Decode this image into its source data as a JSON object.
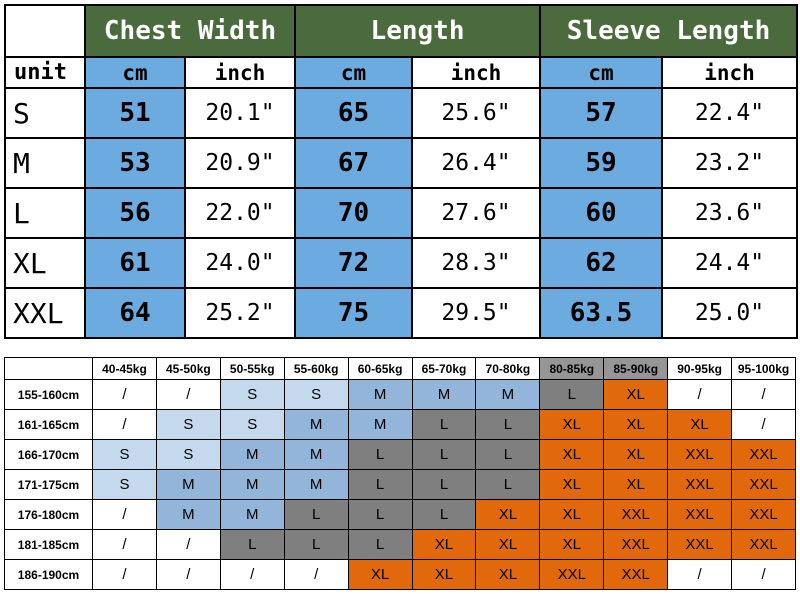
{
  "chart_data": [
    {
      "type": "table",
      "column_groups": [
        "Chest Width",
        "Length",
        "Sleeve Length"
      ],
      "unit_label": "unit",
      "unit_headers": [
        "cm",
        "inch",
        "cm",
        "inch",
        "cm",
        "inch"
      ],
      "rows": [
        {
          "size": "S",
          "values": [
            "51",
            "20.1\"",
            "65",
            "25.6\"",
            "57",
            "22.4\""
          ]
        },
        {
          "size": "M",
          "values": [
            "53",
            "20.9\"",
            "67",
            "26.4\"",
            "59",
            "23.2\""
          ]
        },
        {
          "size": "L",
          "values": [
            "56",
            "22.0\"",
            "70",
            "27.6\"",
            "60",
            "23.6\""
          ]
        },
        {
          "size": "XL",
          "values": [
            "61",
            "24.0\"",
            "72",
            "28.3\"",
            "62",
            "24.4\""
          ]
        },
        {
          "size": "XXL",
          "values": [
            "64",
            "25.2\"",
            "75",
            "29.5\"",
            "63.5",
            "25.0\""
          ]
        }
      ]
    },
    {
      "type": "table",
      "weight_headers": [
        {
          "label": "40-45kg",
          "shaded": false
        },
        {
          "label": "45-50kg",
          "shaded": false
        },
        {
          "label": "50-55kg",
          "shaded": false
        },
        {
          "label": "55-60kg",
          "shaded": false
        },
        {
          "label": "60-65kg",
          "shaded": false
        },
        {
          "label": "65-70kg",
          "shaded": false
        },
        {
          "label": "70-80kg",
          "shaded": false
        },
        {
          "label": "80-85kg",
          "shaded": true
        },
        {
          "label": "85-90kg",
          "shaded": true
        },
        {
          "label": "90-95kg",
          "shaded": false
        },
        {
          "label": "95-100kg",
          "shaded": false
        }
      ],
      "rows": [
        {
          "height": "155-160cm",
          "cells": [
            "/",
            "/",
            "S",
            "S",
            "M",
            "M",
            "M",
            "L",
            "XL",
            "/",
            "/"
          ]
        },
        {
          "height": "161-165cm",
          "cells": [
            "/",
            "S",
            "S",
            "M",
            "M",
            "L",
            "L",
            "XL",
            "XL",
            "XL",
            "/"
          ]
        },
        {
          "height": "166-170cm",
          "cells": [
            "S",
            "S",
            "M",
            "M",
            "L",
            "L",
            "L",
            "XL",
            "XL",
            "XXL",
            "XXL"
          ]
        },
        {
          "height": "171-175cm",
          "cells": [
            "S",
            "M",
            "M",
            "M",
            "L",
            "L",
            "L",
            "XL",
            "XL",
            "XXL",
            "XXL"
          ]
        },
        {
          "height": "176-180cm",
          "cells": [
            "/",
            "M",
            "M",
            "L",
            "L",
            "L",
            "XL",
            "XL",
            "XXL",
            "XXL",
            "XXL"
          ]
        },
        {
          "height": "181-185cm",
          "cells": [
            "/",
            "/",
            "L",
            "L",
            "L",
            "XL",
            "XL",
            "XL",
            "XXL",
            "XXL",
            "XXL"
          ]
        },
        {
          "height": "186-190cm",
          "cells": [
            "/",
            "/",
            "/",
            "/",
            "XL",
            "XL",
            "XL",
            "XXL",
            "XXL",
            "/",
            "/"
          ]
        }
      ]
    }
  ],
  "colors": {
    "header_green": "#4b6b3e",
    "cm_blue": "#6cabdf",
    "size_S": "#c5d9ee",
    "size_M": "#93b5d9",
    "size_L": "#7f7f7f",
    "size_XL": "#e2690b",
    "size_XXL": "#e2690b",
    "shaded_header": "#969696",
    "empty": "#ffffff"
  }
}
